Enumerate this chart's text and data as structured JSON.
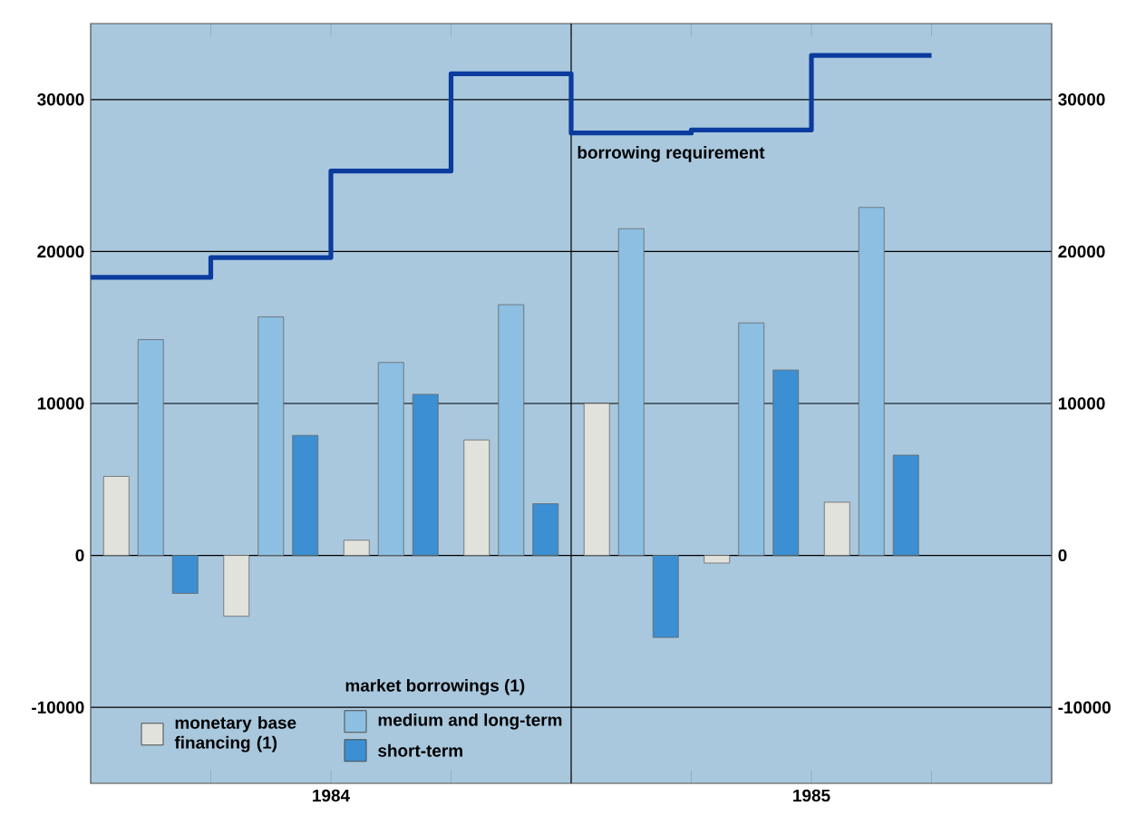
{
  "chart_data": {
    "type": "bar",
    "x": [
      1984.125,
      1984.375,
      1984.625,
      1984.875,
      1985.125,
      1985.375,
      1985.625
    ],
    "series": [
      {
        "name": "monetary base financing (1)",
        "color": "#e2e2dc",
        "values": [
          5200,
          -4000,
          1000,
          7600,
          10000,
          -500,
          3500
        ]
      },
      {
        "name": "medium and long-term",
        "color": "#8cbfe2",
        "values": [
          14200,
          15700,
          12700,
          16500,
          21500,
          15300,
          22900
        ]
      },
      {
        "name": "short-term",
        "color": "#3b8fd2",
        "values": [
          -2500,
          7900,
          10600,
          3400,
          -5400,
          12200,
          6600
        ]
      },
      {
        "name": "borrowing requirement",
        "type": "step",
        "color": "#0b3b9e",
        "x": [
          1984,
          1984.25,
          1984.5,
          1984.75,
          1985,
          1985.25,
          1985.5,
          1985.75
        ],
        "values": [
          18300,
          19600,
          25300,
          31700,
          27800,
          28000,
          32900,
          32900
        ]
      }
    ],
    "xlim": [
      1984,
      1986
    ],
    "xticks": [
      {
        "value": 1984.25,
        "label": null
      },
      {
        "value": 1984.5,
        "label": "1984"
      },
      {
        "value": 1984.75,
        "label": null
      },
      {
        "value": 1985,
        "label": null
      },
      {
        "value": 1985.25,
        "label": null
      },
      {
        "value": 1985.5,
        "label": "1985"
      },
      {
        "value": 1985.75,
        "label": null
      }
    ],
    "ylim": [
      -15000,
      35000
    ],
    "yticks": [
      -10000,
      0,
      10000,
      20000,
      30000
    ],
    "y2lim": [
      -15000,
      35000
    ],
    "y2ticks": [
      -10000,
      0,
      10000,
      20000,
      30000
    ],
    "grid": "y",
    "legend": "bottom left",
    "legend_title": "market borrowings (1)",
    "ref_lines": [
      {
        "axis": "x",
        "value": 1985
      }
    ]
  }
}
